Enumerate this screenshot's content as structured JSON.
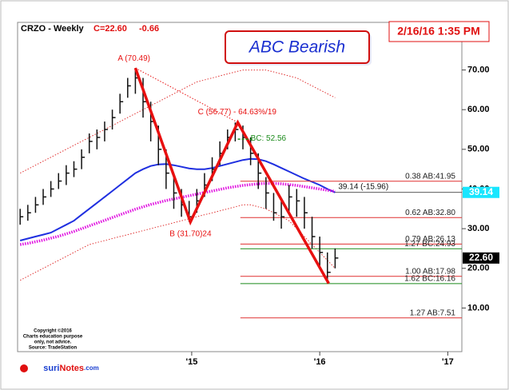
{
  "chart_data": {
    "type": "ohlc",
    "title": "CRZO - Weekly",
    "last_close": {
      "value": 22.6,
      "label": "C=22.60"
    },
    "change": -0.66,
    "timestamp": "2/16/16 1:35 PM",
    "pattern_label": "ABC Bearish",
    "xlim": [
      2013.64,
      2017.11
    ],
    "ylim": [
      -1,
      82
    ],
    "xticks": [
      {
        "value": 2015,
        "label": "'15"
      },
      {
        "value": 2016,
        "label": "'16"
      },
      {
        "value": 2017,
        "label": "'17"
      }
    ],
    "yticks": [
      {
        "value": 10,
        "label": "10.00"
      },
      {
        "value": 20,
        "label": "20.00"
      },
      {
        "value": 30,
        "label": "30.00"
      },
      {
        "value": 40,
        "label": "40.00"
      },
      {
        "value": 50,
        "label": "50.00"
      },
      {
        "value": 60,
        "label": "60.00"
      },
      {
        "value": 70,
        "label": "70.00"
      }
    ],
    "x": [
      2013.66,
      2013.72,
      2013.78,
      2013.84,
      2013.9,
      2013.96,
      2014.02,
      2014.08,
      2014.14,
      2014.2,
      2014.26,
      2014.32,
      2014.38,
      2014.44,
      2014.5,
      2014.56,
      2014.62,
      2014.68,
      2014.74,
      2014.8,
      2014.86,
      2014.92,
      2014.98,
      2015.04,
      2015.1,
      2015.16,
      2015.22,
      2015.28,
      2015.34,
      2015.4,
      2015.46,
      2015.52,
      2015.58,
      2015.64,
      2015.7,
      2015.76,
      2015.82,
      2015.88,
      2015.94,
      2016.0,
      2016.06,
      2016.12
    ],
    "high": [
      35,
      36,
      38,
      40,
      42,
      44,
      46,
      47,
      50,
      54,
      55,
      57,
      60,
      64,
      68,
      70.49,
      68,
      62,
      56,
      50,
      44,
      40,
      37,
      40,
      44,
      48,
      52,
      55,
      56.77,
      56,
      53,
      49,
      43,
      39,
      37,
      41,
      40,
      38,
      33,
      28,
      24,
      25
    ],
    "low": [
      31,
      32,
      34,
      36,
      38,
      40,
      41,
      43,
      45,
      49,
      50,
      52,
      55,
      59,
      63,
      64,
      58,
      52,
      46,
      40,
      35,
      33,
      31.7,
      34,
      38,
      42,
      46,
      50,
      52,
      50,
      46,
      40,
      35,
      32,
      30,
      34,
      33,
      30,
      25,
      20,
      16.2,
      20
    ],
    "close": [
      33,
      34,
      36,
      38,
      40,
      42,
      44,
      45,
      48,
      52,
      53,
      55,
      58,
      62,
      66,
      68,
      62,
      57,
      50,
      44,
      39,
      36,
      33,
      37,
      41,
      45,
      49,
      53,
      55,
      53,
      49,
      44,
      39,
      34,
      33,
      38,
      37,
      34,
      28,
      24,
      19,
      22.6
    ],
    "bar_color": "#111111",
    "overlays": [
      {
        "color": "#1f2fe0",
        "style": "solid",
        "values": [
          27,
          27.5,
          28,
          28.5,
          29,
          30,
          31,
          32,
          33.5,
          35,
          36.5,
          38,
          39.5,
          41,
          42.5,
          44,
          45,
          45.8,
          46.2,
          46.3,
          46,
          45.6,
          45.2,
          45,
          45,
          45.3,
          45.8,
          46.3,
          46.8,
          47.3,
          47.6,
          47.5,
          47,
          46.2,
          45.3,
          44.4,
          43.5,
          42.6,
          41.8,
          41,
          40,
          39.14
        ]
      },
      {
        "color": "#e010e0",
        "style": "dotted",
        "values": [
          26,
          26.3,
          26.7,
          27.1,
          27.6,
          28.1,
          28.7,
          29.3,
          30,
          30.7,
          31.4,
          32.1,
          32.8,
          33.5,
          34.2,
          34.9,
          35.5,
          36.1,
          36.6,
          37.1,
          37.5,
          37.9,
          38.3,
          38.7,
          39.1,
          39.5,
          39.9,
          40.3,
          40.6,
          40.9,
          41.1,
          41.3,
          41.4,
          41.4,
          41.3,
          41.1,
          40.9,
          40.6,
          40.3,
          40,
          39.7,
          39.4
        ]
      },
      {
        "color": "#e03030",
        "style": "thin",
        "values": [
          44,
          45,
          46,
          47,
          48,
          49,
          50,
          51,
          52,
          53,
          54,
          55,
          56,
          57,
          58,
          59,
          60,
          61,
          62,
          63,
          64,
          65,
          66,
          67,
          67.5,
          68,
          68.5,
          69,
          69.5,
          70,
          70,
          70,
          70,
          69.5,
          69,
          68.5,
          68,
          67,
          66,
          65,
          64,
          63
        ]
      },
      {
        "color": "#e03030",
        "style": "thin",
        "values": [
          17,
          18,
          19,
          20,
          21,
          22,
          23,
          24,
          25,
          26,
          26.5,
          27,
          27.5,
          28,
          28.5,
          29,
          29.5,
          30,
          30.5,
          31,
          31.5,
          32,
          32.5,
          33,
          33.5,
          34,
          34.5,
          35,
          35.5,
          36,
          36,
          35.5,
          35,
          34,
          33,
          32,
          30,
          28,
          26,
          24,
          22,
          20
        ]
      }
    ],
    "pattern_color": "#e81010",
    "pattern_points": [
      {
        "x": 2014.56,
        "y": 70.49,
        "label": "A (70.49)"
      },
      {
        "x": 2014.99,
        "y": 31.7,
        "label": "B (31.70)24"
      },
      {
        "x": 2015.36,
        "y": 56.77,
        "label": "C (56.77) - 64.63%/19"
      },
      {
        "x": 2016.07,
        "y": 16.2
      }
    ],
    "bc_marker": {
      "value": 52.56,
      "label": "BC: 52.56",
      "color": "#1a8a1a"
    },
    "ma_note": {
      "value": 39.14,
      "label": "39.14 (-15.96)"
    },
    "level_start": 2015.38,
    "levels": [
      {
        "value": 41.95,
        "label": "0.38 AB:41.95",
        "color": "#e03030"
      },
      {
        "value": 32.8,
        "label": "0.62 AB:32.80",
        "color": "#e03030"
      },
      {
        "value": 26.13,
        "label": "0.79 AB:26.13",
        "color": "#e03030"
      },
      {
        "value": 24.93,
        "label": "1.27 BC:24.93",
        "color": "#1a8a1a"
      },
      {
        "value": 17.98,
        "label": "1.00 AB:17.98",
        "color": "#e03030"
      },
      {
        "value": 16.16,
        "label": "1.62 BC:16.16",
        "color": "#1a8a1a"
      },
      {
        "value": 7.51,
        "label": "1.27 AB:7.51",
        "color": "#e03030"
      }
    ],
    "price_tags": [
      {
        "value": 39.14,
        "label": "39.14",
        "color": "#19e6ff"
      },
      {
        "value": 22.6,
        "label": "22.60",
        "color": "#000000"
      }
    ],
    "copyright": [
      "Copyright ©2016",
      "Charts education purpose",
      "only, not advice.",
      "Source: TradeStation"
    ],
    "logo": [
      "suri",
      "Notes",
      ".com"
    ]
  }
}
